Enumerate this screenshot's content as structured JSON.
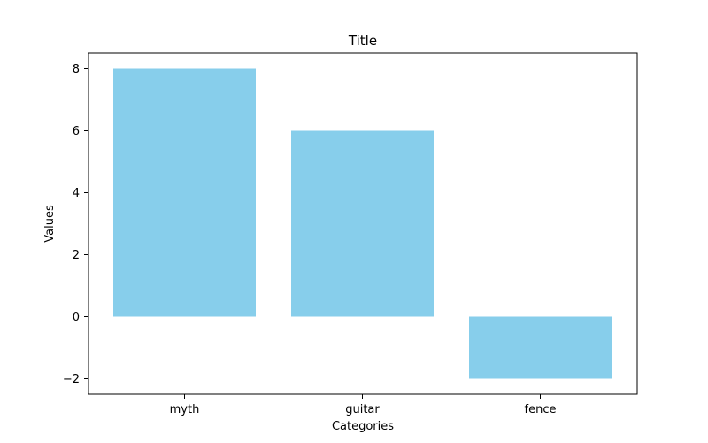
{
  "chart_data": {
    "type": "bar",
    "title": "Title",
    "xlabel": "Categories",
    "ylabel": "Values",
    "categories": [
      "myth",
      "guitar",
      "fence"
    ],
    "values": [
      8,
      6,
      -2
    ],
    "ylim": [
      -2.5,
      8.5
    ],
    "yticks": [
      -2,
      0,
      2,
      4,
      6,
      8
    ],
    "ytick_labels": [
      "−2",
      "0",
      "2",
      "4",
      "6",
      "8"
    ],
    "bar_color": "#87ceeb",
    "grid": false,
    "legend": "none"
  }
}
